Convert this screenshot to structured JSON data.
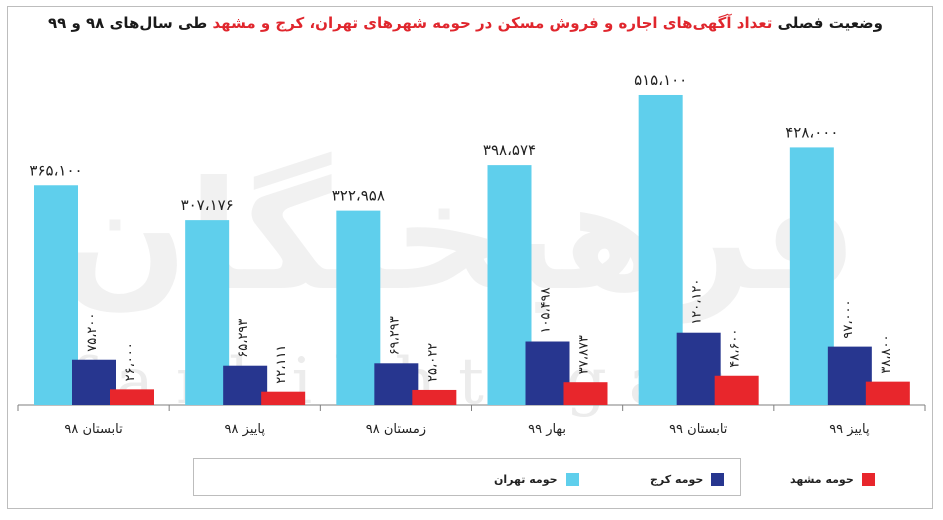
{
  "title": {
    "part1": "وضعیت فصلی ",
    "part2": "تعداد آگهی‌های اجاره و فروش مسکن در حومه شهرهای تهران، کرج و مشهد",
    "part3": " طی سال‌های ۹۸ و ۹۹"
  },
  "watermark": {
    "fa": "فرهیختگان",
    "en": "farhikhtegan"
  },
  "colors": {
    "tehran": "#5fcfec",
    "karaj": "#27368f",
    "mashhad": "#e8262c",
    "axis": "#7f7f7f"
  },
  "chart_data": {
    "type": "bar",
    "title": "وضعیت فصلی تعداد آگهی‌های اجاره و فروش مسکن در حومه شهرهای تهران، کرج و مشهد طی سال‌های ۹۸ و ۹۹",
    "categories": [
      "تابستان ۹۸",
      "پاییز ۹۸",
      "زمستان ۹۸",
      "بهار ۹۹",
      "تابستان ۹۹",
      "پاییز ۹۹"
    ],
    "series": [
      {
        "name": "حومه تهران",
        "values": [
          365100,
          307176,
          322958,
          398574,
          515100,
          428000
        ],
        "labels": [
          "۳۶۵،۱۰۰",
          "۳۰۷،۱۷۶",
          "۳۲۲،۹۵۸",
          "۳۹۸،۵۷۴",
          "۵۱۵،۱۰۰",
          "۴۲۸،۰۰۰"
        ]
      },
      {
        "name": "حومه کرج",
        "values": [
          75200,
          65293,
          69293,
          105498,
          120120,
          97000
        ],
        "labels": [
          "۷۵،۲۰۰",
          "۶۵،۲۹۳",
          "۶۹،۲۹۳",
          "۱۰۵،۴۹۸",
          "۱۲۰،۱۲۰",
          "۹۷،۰۰۰"
        ]
      },
      {
        "name": "حومه مشهد",
        "values": [
          26000,
          22111,
          25022,
          37873,
          48600,
          38800
        ],
        "labels": [
          "۲۶،۰۰۰",
          "۲۲،۱۱۱",
          "۲۵،۰۲۲",
          "۳۷،۸۷۳",
          "۴۸،۶۰۰",
          "۳۸،۸۰۰"
        ]
      }
    ],
    "ylim": [
      0,
      540000
    ],
    "grid": false,
    "legend_position": "bottom"
  }
}
